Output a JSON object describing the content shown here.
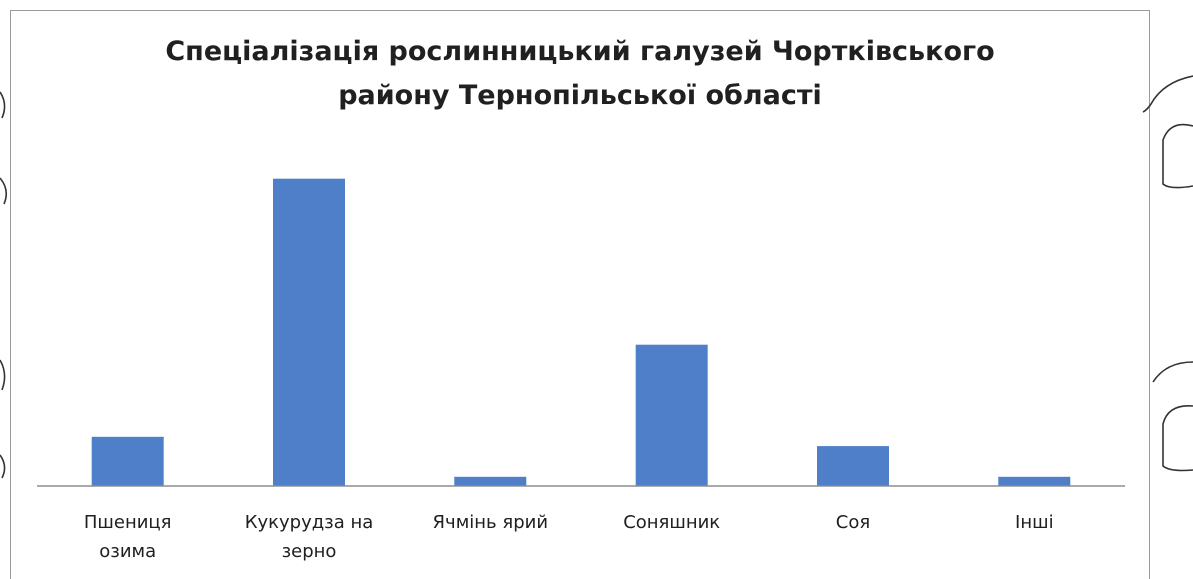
{
  "chart_data": {
    "type": "bar",
    "title_lines": [
      "Спеціалізація рослинницький галузей Чортківського",
      "району Тернопільської  області"
    ],
    "categories": [
      [
        "Пшениця",
        "озима"
      ],
      [
        "Кукурудза на",
        "зерно"
      ],
      [
        "Ячмінь ярий"
      ],
      [
        "Соняшник"
      ],
      [
        "Соя"
      ],
      [
        "Інші"
      ]
    ],
    "values": [
      16,
      100,
      3,
      46,
      13,
      3
    ],
    "ylim": [
      0,
      110
    ],
    "grid": false,
    "legend": "none",
    "bar_color": "#4f7fc8",
    "axis_color": "#8e8e8e"
  }
}
